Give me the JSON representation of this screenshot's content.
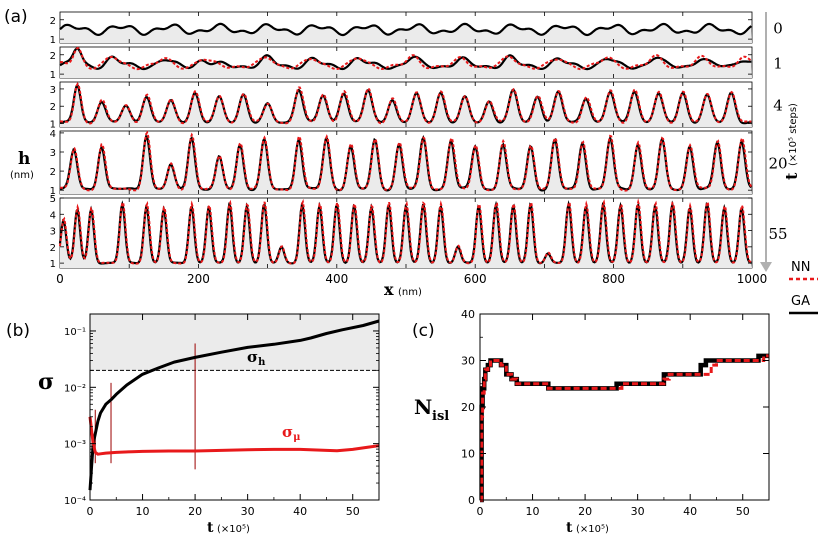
{
  "colors": {
    "nn": "#e8191b",
    "ga": "#000000",
    "band": "#ebebeb",
    "arrow": "#b0b0b0",
    "marker": "#9b0000"
  },
  "panel_labels": {
    "a": "(a)",
    "b": "(b)",
    "c": "(c)"
  },
  "chart_data": [
    {
      "id": "a",
      "type": "line",
      "title": "",
      "xlabel": "x",
      "xlabel_unit": "(nm)",
      "ylabel": "h",
      "ylabel_unit": "(nm)",
      "xlim": [
        0,
        1000
      ],
      "x_ticks": [
        "0",
        "200",
        "400",
        "600",
        "800",
        "1000"
      ],
      "x_tick_values": [
        0,
        200,
        400,
        600,
        800,
        1000
      ],
      "time_axis_label": "t",
      "time_axis_unit": "(×10⁵ steps)",
      "legend": [
        {
          "name": "NN",
          "style": "dashed"
        },
        {
          "name": "GA",
          "style": "solid"
        }
      ],
      "strips": [
        {
          "t_label": "0",
          "ylim": [
            0.8,
            2.4
          ],
          "yticks": [
            "1",
            "2"
          ],
          "ytick_values": [
            1,
            2
          ],
          "nn": false,
          "peaks": [],
          "baseline": 1.5,
          "ripple": 0.18
        },
        {
          "t_label": "1",
          "ylim": [
            0.8,
            2.4
          ],
          "yticks": [
            "1",
            "2"
          ],
          "ytick_values": [
            1,
            2
          ],
          "nn": true,
          "peaks": [
            [
              25,
              2.3,
              6
            ],
            [
              75,
              1.8,
              8
            ],
            [
              150,
              1.7,
              8
            ],
            [
              205,
              1.75,
              8
            ],
            [
              300,
              1.8,
              8
            ],
            [
              365,
              1.7,
              8
            ],
            [
              430,
              1.75,
              8
            ],
            [
              510,
              1.8,
              8
            ],
            [
              580,
              1.7,
              8
            ],
            [
              650,
              1.8,
              8
            ],
            [
              720,
              1.7,
              8
            ],
            [
              790,
              1.75,
              8
            ],
            [
              860,
              1.8,
              8
            ],
            [
              925,
              1.75,
              8
            ],
            [
              985,
              1.8,
              8
            ]
          ],
          "baseline": 1.45,
          "ripple": 0.12
        },
        {
          "t_label": "4",
          "ylim": [
            0.8,
            3.4
          ],
          "yticks": [
            "1",
            "2",
            "3"
          ],
          "ytick_values": [
            1,
            2,
            3
          ],
          "nn": true,
          "peaks": [
            [
              25,
              3.2,
              5
            ],
            [
              60,
              2.3,
              6
            ],
            [
              95,
              2.0,
              6
            ],
            [
              125,
              2.6,
              6
            ],
            [
              160,
              2.3,
              6
            ],
            [
              195,
              2.8,
              6
            ],
            [
              230,
              2.5,
              6
            ],
            [
              265,
              2.7,
              6
            ],
            [
              300,
              2.1,
              6
            ],
            [
              345,
              3.0,
              6
            ],
            [
              380,
              2.6,
              6
            ],
            [
              410,
              2.8,
              6
            ],
            [
              445,
              2.9,
              6
            ],
            [
              480,
              2.4,
              6
            ],
            [
              515,
              2.7,
              6
            ],
            [
              550,
              2.8,
              6
            ],
            [
              585,
              2.5,
              6
            ],
            [
              620,
              2.3,
              6
            ],
            [
              655,
              2.9,
              6
            ],
            [
              690,
              2.6,
              6
            ],
            [
              720,
              2.8,
              6
            ],
            [
              760,
              2.5,
              6
            ],
            [
              795,
              2.8,
              6
            ],
            [
              830,
              2.9,
              6
            ],
            [
              865,
              2.7,
              6
            ],
            [
              900,
              2.8,
              6
            ],
            [
              935,
              2.6,
              6
            ],
            [
              970,
              2.8,
              6
            ]
          ],
          "baseline": 1.05,
          "ripple": 0.05
        },
        {
          "t_label": "20",
          "ylim": [
            0.8,
            4.1
          ],
          "yticks": [
            "1",
            "2",
            "3",
            "4"
          ],
          "ytick_values": [
            1,
            2,
            3,
            4
          ],
          "nn": true,
          "peaks": [
            [
              20,
              3.1,
              5
            ],
            [
              60,
              3.3,
              5
            ],
            [
              125,
              3.9,
              5
            ],
            [
              160,
              2.3,
              5
            ],
            [
              190,
              3.8,
              5
            ],
            [
              230,
              2.7,
              5
            ],
            [
              260,
              3.4,
              5
            ],
            [
              295,
              3.6,
              5
            ],
            [
              345,
              3.7,
              5
            ],
            [
              385,
              3.7,
              5
            ],
            [
              420,
              3.3,
              5
            ],
            [
              455,
              3.6,
              5
            ],
            [
              490,
              3.4,
              5
            ],
            [
              525,
              3.7,
              5
            ],
            [
              565,
              3.6,
              5
            ],
            [
              600,
              3.3,
              5
            ],
            [
              640,
              3.4,
              5
            ],
            [
              680,
              3.3,
              5
            ],
            [
              715,
              3.6,
              5
            ],
            [
              755,
              3.5,
              5
            ],
            [
              795,
              3.7,
              5
            ],
            [
              835,
              3.4,
              5
            ],
            [
              870,
              3.6,
              5
            ],
            [
              910,
              3.3,
              5
            ],
            [
              950,
              3.5,
              5
            ],
            [
              985,
              3.6,
              5
            ]
          ],
          "baseline": 1.05,
          "ripple": 0.05
        },
        {
          "t_label": "55",
          "ylim": [
            0.7,
            5.0
          ],
          "yticks": [
            "1",
            "2",
            "3",
            "4",
            "5"
          ],
          "ytick_values": [
            1,
            2,
            3,
            4,
            5
          ],
          "nn": true,
          "peaks": [
            [
              5,
              3.6,
              4
            ],
            [
              25,
              4.3,
              4
            ],
            [
              45,
              4.3,
              4
            ],
            [
              90,
              4.6,
              4
            ],
            [
              125,
              4.5,
              4
            ],
            [
              150,
              4.3,
              4
            ],
            [
              190,
              4.5,
              4
            ],
            [
              215,
              4.4,
              4
            ],
            [
              245,
              4.6,
              4
            ],
            [
              270,
              4.5,
              4
            ],
            [
              295,
              4.6,
              4
            ],
            [
              320,
              2.0,
              4
            ],
            [
              350,
              4.6,
              4
            ],
            [
              375,
              4.5,
              4
            ],
            [
              400,
              4.6,
              4
            ],
            [
              425,
              4.5,
              4
            ],
            [
              450,
              4.4,
              4
            ],
            [
              475,
              4.6,
              4
            ],
            [
              500,
              4.5,
              4
            ],
            [
              525,
              4.6,
              4
            ],
            [
              550,
              4.5,
              4
            ],
            [
              575,
              2.0,
              4
            ],
            [
              605,
              4.5,
              4
            ],
            [
              630,
              4.6,
              4
            ],
            [
              655,
              4.5,
              4
            ],
            [
              680,
              4.6,
              4
            ],
            [
              705,
              1.6,
              4
            ],
            [
              735,
              4.6,
              4
            ],
            [
              760,
              4.5,
              4
            ],
            [
              785,
              4.6,
              4
            ],
            [
              810,
              4.5,
              4
            ],
            [
              835,
              4.6,
              4
            ],
            [
              860,
              4.5,
              4
            ],
            [
              885,
              4.6,
              4
            ],
            [
              910,
              4.4,
              4
            ],
            [
              935,
              4.6,
              4
            ],
            [
              960,
              4.4,
              4
            ],
            [
              985,
              4.4,
              4
            ]
          ],
          "baseline": 1.0,
          "ripple": 0.02
        }
      ]
    },
    {
      "id": "b",
      "type": "line",
      "yscale": "log",
      "xlabel": "t",
      "xlabel_unit": "(×10⁵)",
      "ylabel": "σ",
      "xlim": [
        0,
        55
      ],
      "ylim": [
        0.0001,
        0.2
      ],
      "x_ticks": [
        "0",
        "10",
        "20",
        "30",
        "40",
        "50"
      ],
      "x_tick_values": [
        0,
        10,
        20,
        30,
        40,
        50
      ],
      "y_ticks": [
        "10⁻⁴",
        "10⁻³",
        "10⁻²",
        "10⁻¹"
      ],
      "y_tick_values": [
        0.0001,
        0.001,
        0.01,
        0.1
      ],
      "threshold": 0.02,
      "vertical_markers": [
        {
          "t": 1,
          "range": [
            0.00045,
            0.004
          ]
        },
        {
          "t": 4,
          "range": [
            0.00045,
            0.012
          ]
        },
        {
          "t": 20,
          "range": [
            0.00035,
            0.06
          ]
        }
      ],
      "series": [
        {
          "name": "σh",
          "label_main": "σ",
          "label_sub": "h",
          "color": "#000000",
          "x": [
            0,
            0.3,
            0.6,
            1,
            1.5,
            2,
            3,
            4,
            5,
            7,
            10,
            13,
            16,
            20,
            25,
            30,
            35,
            40,
            42,
            45,
            48,
            52,
            55
          ],
          "y": [
            0.00015,
            0.0004,
            0.001,
            0.0015,
            0.0025,
            0.0035,
            0.005,
            0.006,
            0.0075,
            0.011,
            0.017,
            0.022,
            0.028,
            0.034,
            0.042,
            0.051,
            0.058,
            0.068,
            0.075,
            0.09,
            0.105,
            0.125,
            0.15
          ]
        },
        {
          "name": "σμ",
          "label_main": "σ",
          "label_sub": "μ",
          "color": "#e8191b",
          "x": [
            0,
            0.3,
            0.6,
            1,
            1.5,
            2,
            3,
            5,
            8,
            10,
            15,
            20,
            25,
            30,
            35,
            40,
            45,
            47,
            50,
            53,
            55
          ],
          "y": [
            0.003,
            0.0017,
            0.001,
            0.0007,
            0.00065,
            0.00066,
            0.00068,
            0.0007,
            0.00072,
            0.00073,
            0.00074,
            0.00074,
            0.00076,
            0.00078,
            0.00079,
            0.00079,
            0.00076,
            0.00075,
            0.00079,
            0.00087,
            0.00092
          ]
        }
      ]
    },
    {
      "id": "c",
      "type": "line",
      "step": true,
      "xlabel": "t",
      "xlabel_unit": "(×10⁵)",
      "ylabel": "N",
      "ylabel_sub": "isl",
      "xlim": [
        0,
        55
      ],
      "ylim": [
        0,
        40
      ],
      "x_ticks": [
        "0",
        "10",
        "20",
        "30",
        "40",
        "50"
      ],
      "x_tick_values": [
        0,
        10,
        20,
        30,
        40,
        50
      ],
      "y_ticks": [
        "0",
        "10",
        "20",
        "30",
        "40"
      ],
      "y_tick_values": [
        0,
        10,
        20,
        30,
        40
      ],
      "series": [
        {
          "name": "GA",
          "color": "#000000",
          "dash": false,
          "x": [
            0,
            0.3,
            0.5,
            0.8,
            1,
            1.5,
            2,
            3,
            4,
            5,
            6,
            7,
            12,
            13,
            20,
            25,
            26,
            30,
            34,
            35,
            40,
            42,
            43,
            45,
            50,
            53,
            55
          ],
          "y": [
            0,
            20,
            24,
            26,
            28,
            29,
            30,
            30,
            29,
            27,
            26,
            25,
            25,
            24,
            24,
            24,
            25,
            25,
            25,
            27,
            27,
            29,
            30,
            30,
            30,
            31,
            31
          ]
        },
        {
          "name": "NN",
          "color": "#e8191b",
          "dash": true,
          "x": [
            0,
            0.3,
            0.5,
            0.8,
            1,
            1.5,
            2,
            3,
            4,
            5,
            6,
            7,
            12,
            13,
            20,
            25,
            27,
            30,
            35,
            36,
            40,
            43,
            44,
            45,
            50,
            54,
            55
          ],
          "y": [
            0,
            18,
            23,
            26,
            28,
            29,
            30,
            30,
            29,
            27,
            26,
            25,
            25,
            24,
            24,
            24,
            25,
            25,
            26,
            27,
            27,
            27,
            29,
            30,
            30,
            31,
            31
          ]
        }
      ]
    }
  ]
}
